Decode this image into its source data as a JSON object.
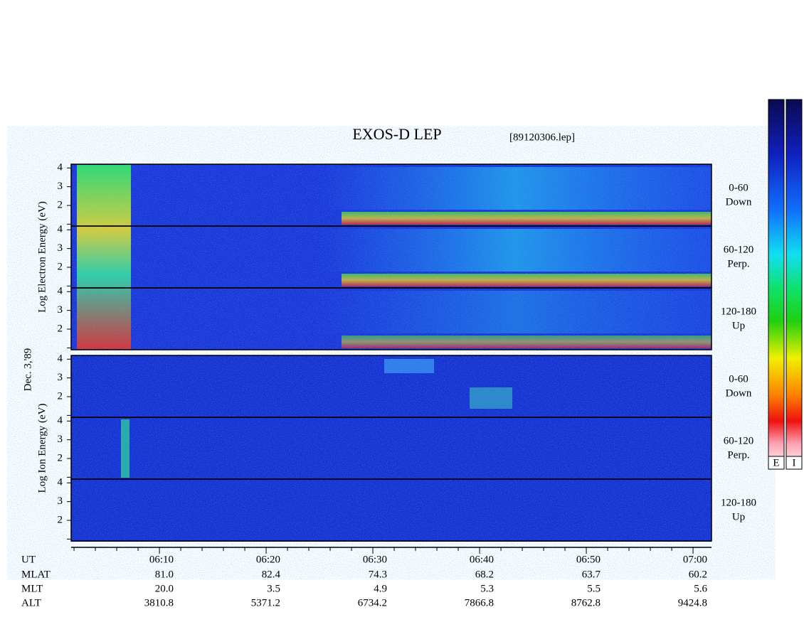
{
  "chart_data": {
    "type": "spectrogram",
    "title": "EXOS-D LEP",
    "subtitle": "[89120306.lep]",
    "date_label": "Dec. 3,'89",
    "groups": [
      {
        "ylabel": "Log  Electron  Energy (eV)",
        "panels": [
          {
            "label_top": "0-60",
            "label_bottom": "Down"
          },
          {
            "label_top": "60-120",
            "label_bottom": "Perp."
          },
          {
            "label_top": "120-180",
            "label_bottom": "Up"
          }
        ]
      },
      {
        "ylabel": "Log  Ion  Energy (eV)",
        "panels": [
          {
            "label_top": "0-60",
            "label_bottom": "Down"
          },
          {
            "label_top": "60-120",
            "label_bottom": "Perp."
          },
          {
            "label_top": "120-180",
            "label_bottom": "Up"
          }
        ]
      }
    ],
    "ylim": [
      0.9,
      4.2
    ],
    "yticks": [
      2,
      3,
      4
    ],
    "minor_yticks": [
      1
    ],
    "xlim": [
      1.73,
      61.73
    ],
    "xticks": [
      {
        "value": 10,
        "label": "06:10"
      },
      {
        "value": 20,
        "label": "06:20"
      },
      {
        "value": 30,
        "label": "06:30"
      },
      {
        "value": 40,
        "label": "06:40"
      },
      {
        "value": 50,
        "label": "06:50"
      },
      {
        "value": 60,
        "label": "07:00"
      }
    ],
    "minor_xticks": [
      2,
      4,
      6,
      8,
      12,
      14,
      16,
      18,
      22,
      24,
      26,
      28,
      32,
      34,
      36,
      38,
      42,
      44,
      46,
      48,
      52,
      54,
      56,
      58
    ],
    "xlabel": "UT",
    "orbit": [
      {
        "name": "MLAT",
        "values": [
          "81.0",
          "82.4",
          "74.3",
          "68.2",
          "63.7",
          "60.2"
        ]
      },
      {
        "name": "MLT",
        "values": [
          "20.0",
          "3.5",
          "4.9",
          "5.3",
          "5.5",
          "5.6"
        ]
      },
      {
        "name": "ALT",
        "values": [
          "3810.8",
          "5371.2",
          "6734.2",
          "7866.8",
          "8762.8",
          "9424.8"
        ]
      }
    ],
    "colorbars": [
      "E",
      "I"
    ]
  }
}
